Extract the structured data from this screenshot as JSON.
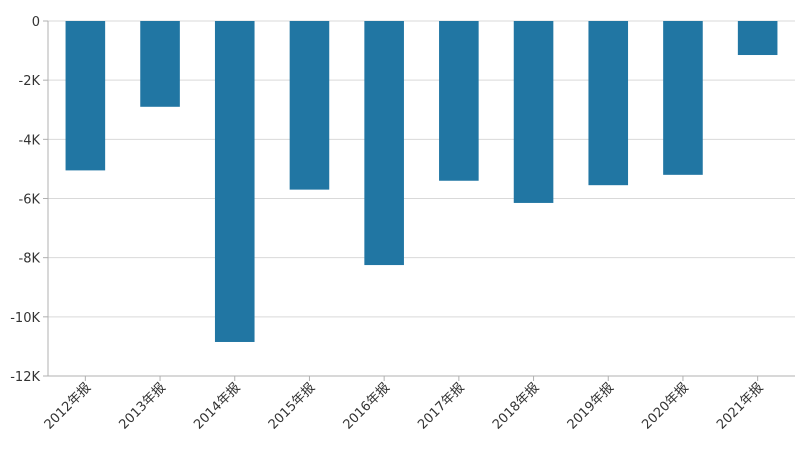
{
  "chart_data": {
    "type": "bar",
    "categories": [
      "2012年报",
      "2013年报",
      "2014年报",
      "2015年报",
      "2016年报",
      "2017年报",
      "2018年报",
      "2019年报",
      "2020年报",
      "2021年报"
    ],
    "values": [
      -5050,
      -2900,
      -10850,
      -5700,
      -8250,
      -5400,
      -6150,
      -5550,
      -5200,
      -1150
    ],
    "yticks": [
      0,
      -2000,
      -4000,
      -6000,
      -8000,
      -10000,
      -12000
    ],
    "ytick_labels": [
      "0",
      "-2K",
      "-4K",
      "-6K",
      "-8K",
      "-10K",
      "-12K"
    ],
    "ylim": [
      -12000,
      0
    ],
    "grid": true,
    "color": "#2176a3"
  }
}
